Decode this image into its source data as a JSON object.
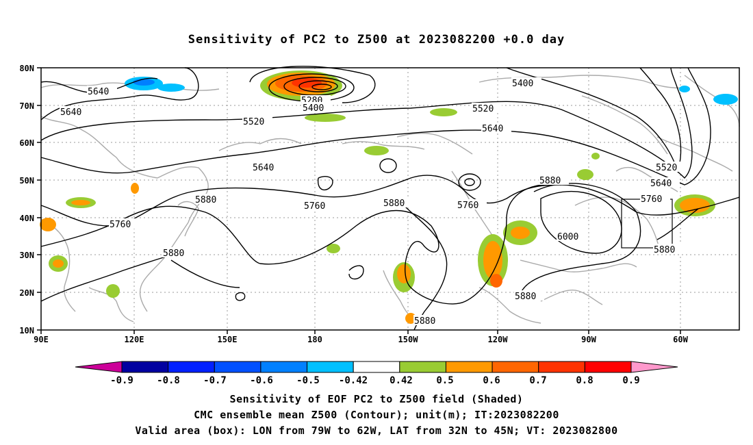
{
  "title": "Sensitivity of PC2 to Z500 at 2023082200 +0.0 day",
  "axes": {
    "lat_labels": [
      "80N",
      "70N",
      "60N",
      "50N",
      "40N",
      "30N",
      "20N",
      "10N"
    ],
    "lon_labels": [
      "90E",
      "120E",
      "150E",
      "180",
      "150W",
      "120W",
      "90W",
      "60W"
    ]
  },
  "contour_labels": [
    "5640",
    "5640",
    "5280",
    "5400",
    "5400",
    "5520",
    "5520",
    "5640",
    "5640",
    "5520",
    "5640",
    "5760",
    "5760",
    "5880",
    "5880",
    "5760",
    "5880",
    "5760",
    "5880",
    "6000",
    "5880",
    "5880",
    "5880"
  ],
  "colorbar": {
    "labels": [
      "-0.9",
      "-0.8",
      "-0.7",
      "-0.6",
      "-0.5",
      "-0.42",
      "0.42",
      "0.5",
      "0.6",
      "0.7",
      "0.8",
      "0.9"
    ],
    "colors": [
      "#0000a0",
      "#0020ff",
      "#0050ff",
      "#0080ff",
      "#00c0ff",
      "#ffffff",
      "#99cc33",
      "#ff9900",
      "#ff6600",
      "#ff3300",
      "#ff0000"
    ],
    "low_end_color": "#cc0099",
    "high_end_color": "#ff99cc"
  },
  "captions": [
    "Sensitivity of EOF PC2 to Z500 field (Shaded)",
    "CMC ensemble mean Z500 (Contour); unit(m); IT:2023082200",
    "Valid area (box): LON from 79W to 62W, LAT from 32N to 45N; VT: 2023082800"
  ]
}
